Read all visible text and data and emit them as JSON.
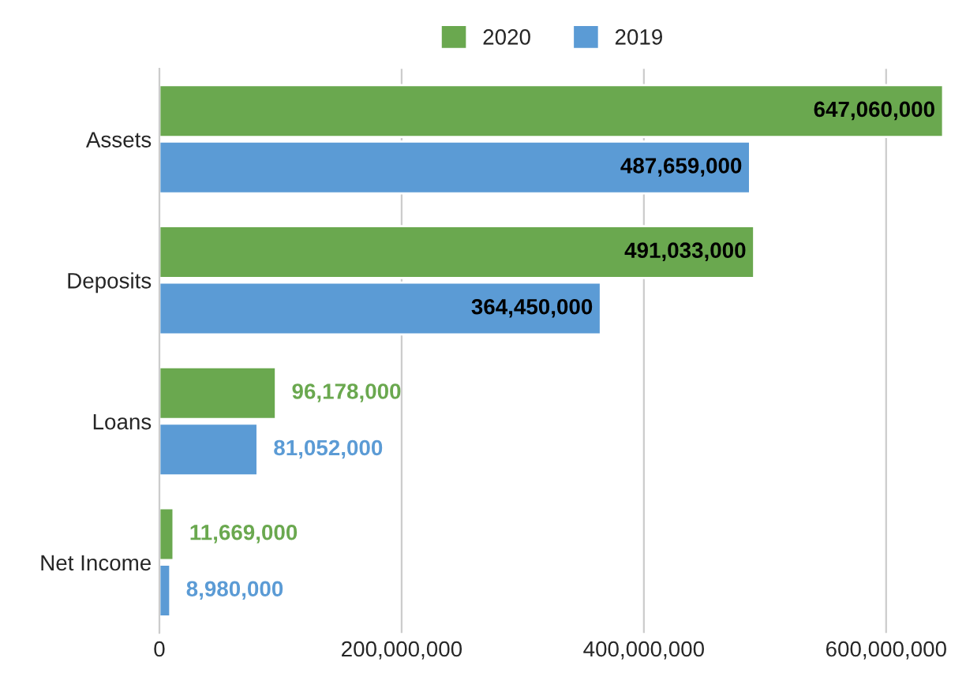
{
  "chart_data": {
    "type": "bar",
    "orientation": "horizontal",
    "categories": [
      "Assets",
      "Deposits",
      "Loans",
      "Net Income"
    ],
    "series": [
      {
        "name": "2020",
        "color": "#6aa84f",
        "values": [
          647060000,
          491033000,
          96178000,
          11669000
        ],
        "value_labels": [
          "647,060,000",
          "491,033,000",
          "96,178,000",
          "11,669,000"
        ]
      },
      {
        "name": "2019",
        "color": "#5b9bd5",
        "values": [
          487659000,
          364450000,
          81052000,
          8980000
        ],
        "value_labels": [
          "487,659,000",
          "364,450,000",
          "81,052,000",
          "8,980,000"
        ]
      }
    ],
    "xlim": [
      0,
      650000000
    ],
    "xticks": [
      0,
      {
        "value": 200000000,
        "label": "200,000,000"
      },
      {
        "value": 400000000,
        "label": "400,000,000"
      },
      {
        "value": 600000000,
        "label": "600,000,000"
      }
    ],
    "grid": "x",
    "legend": "top"
  }
}
